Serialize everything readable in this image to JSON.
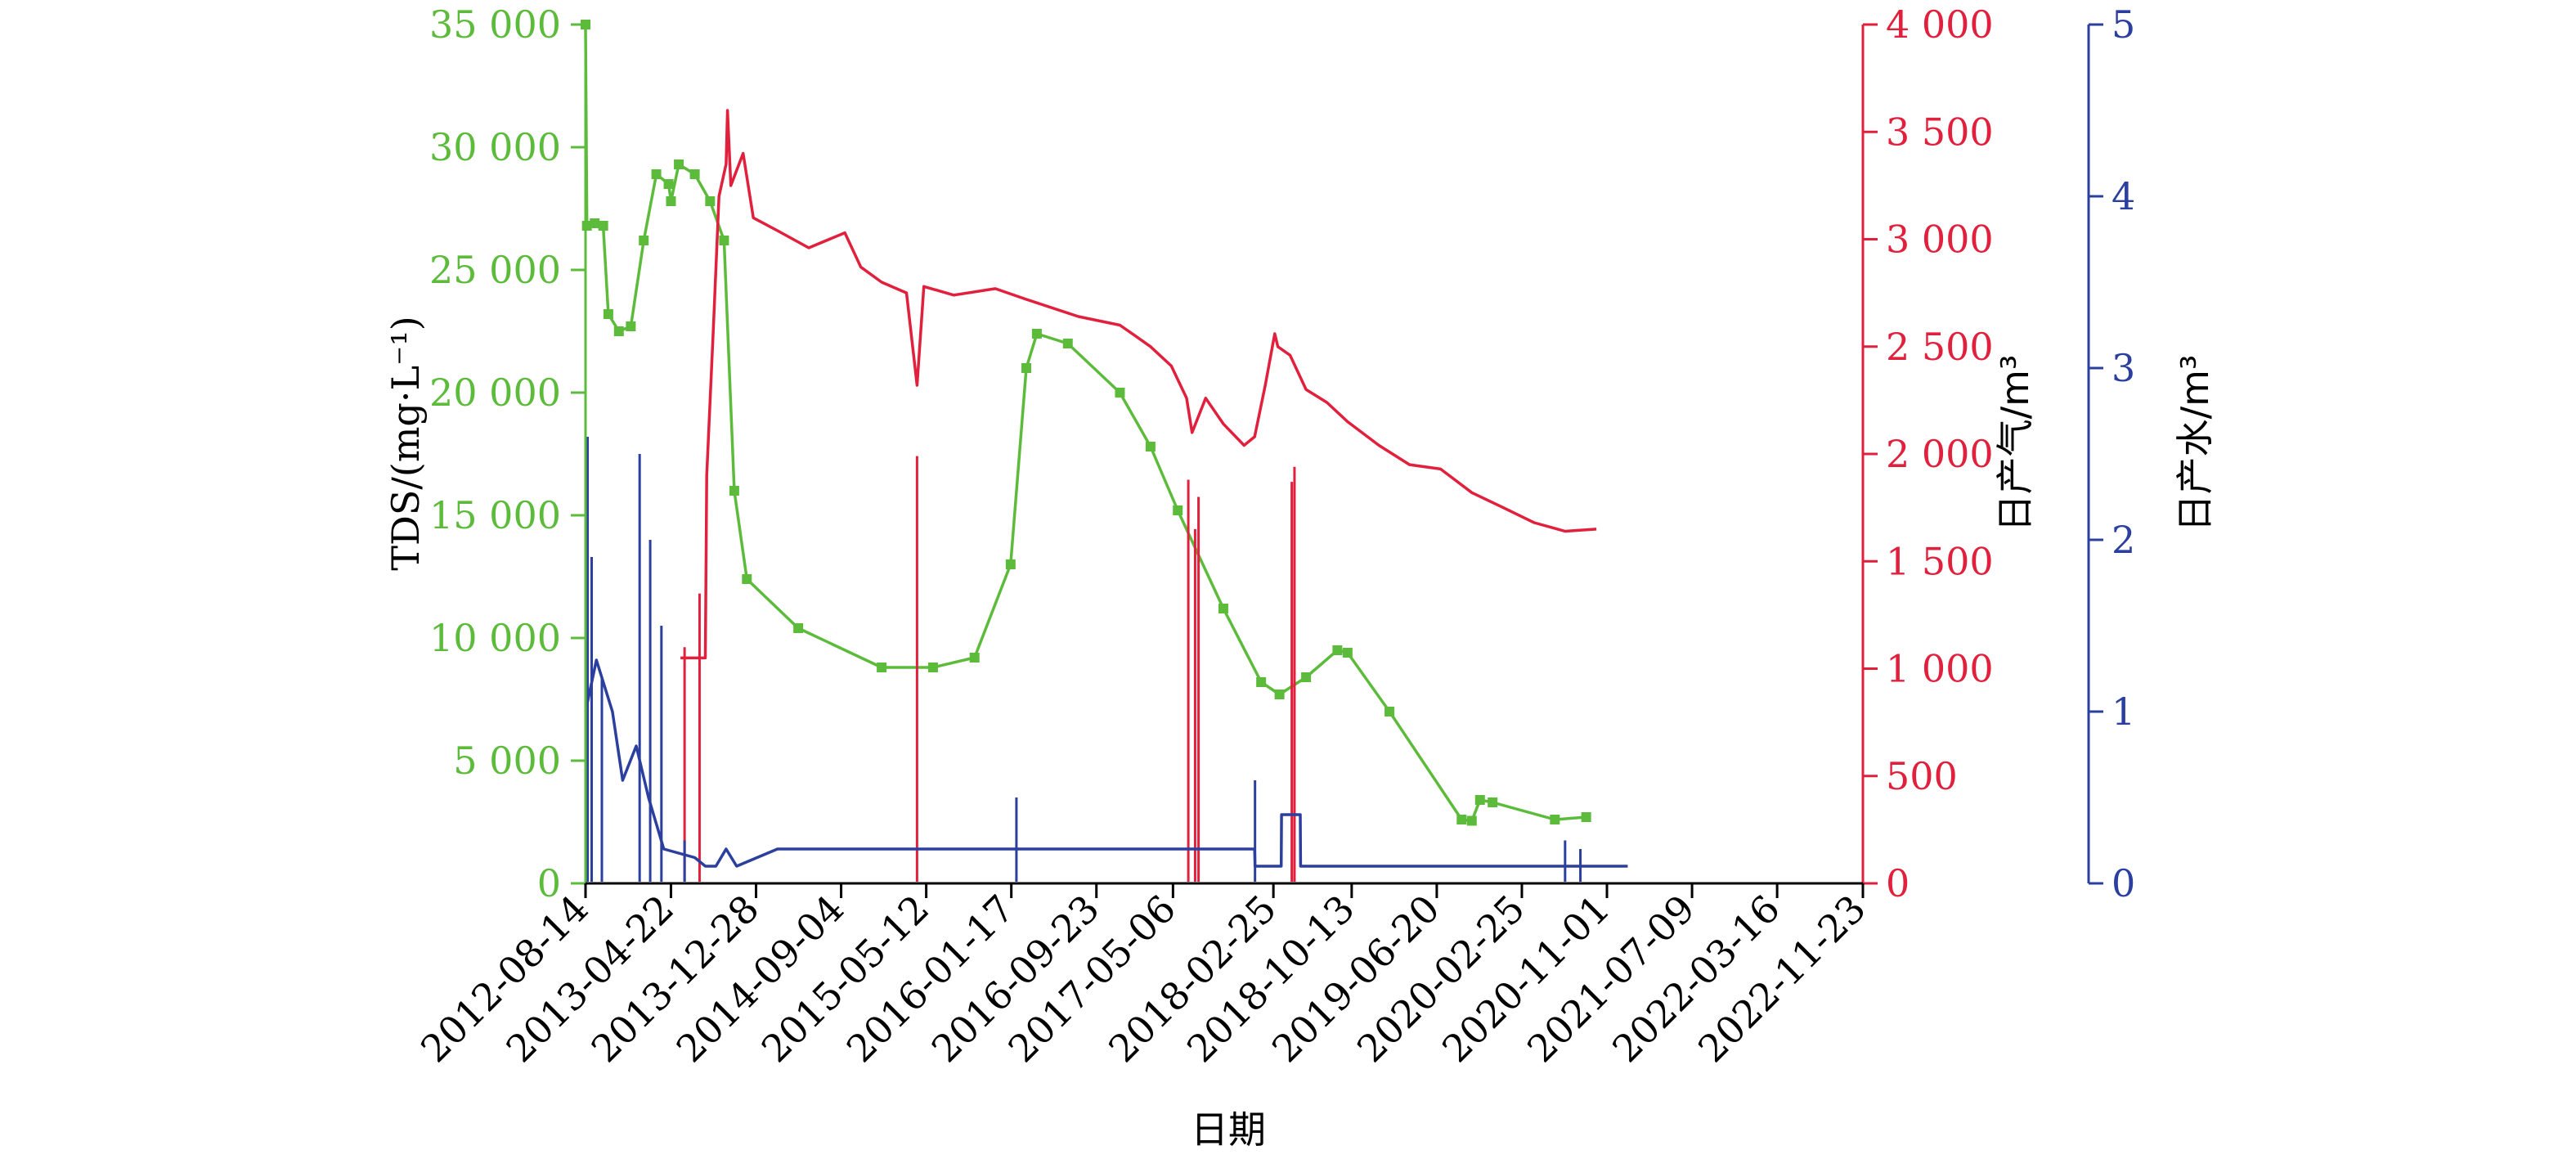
{
  "chart_data": {
    "type": "line",
    "x_ticks": [
      "2012-08-14",
      "2013-04-22",
      "2013-12-28",
      "2014-09-04",
      "2015-05-12",
      "2016-01-17",
      "2016-09-23",
      "2017-05-06",
      "2018-02-25",
      "2018-10-13",
      "2019-06-20",
      "2020-02-25",
      "2020-11-01",
      "2021-07-09",
      "2022-03-16",
      "2022-11-23"
    ],
    "xlabel": "日期",
    "y_left": {
      "label": "TDS/(mg·L⁻¹)",
      "ticks": [
        "0",
        "5 000",
        "10 000",
        "15 000",
        "20 000",
        "25 000",
        "30 000",
        "35 000"
      ],
      "range": [
        0,
        35000
      ],
      "color": "#5DBB3C"
    },
    "y_right1": {
      "label": "日产气/m³",
      "ticks": [
        "0",
        "500",
        "1 000",
        "1 500",
        "2 000",
        "2 500",
        "3 000",
        "3 500",
        "4 000"
      ],
      "range": [
        0,
        4000
      ],
      "color": "#E0203C"
    },
    "y_right2": {
      "label": "日产水/m³",
      "ticks": [
        "0",
        "1",
        "2",
        "3",
        "4",
        "5"
      ],
      "range": [
        0,
        5
      ],
      "color": "#2B3F9E"
    },
    "series": [
      {
        "axis": "left",
        "color": "#5DBB3C",
        "points": [
          [
            "2012-08-14",
            35000
          ],
          [
            "2012-08-18",
            26800
          ],
          [
            "2012-09-10",
            26900
          ],
          [
            "2012-10-05",
            26800
          ],
          [
            "2012-10-20",
            23200
          ],
          [
            "2012-11-20",
            22500
          ],
          [
            "2012-12-25",
            22700
          ],
          [
            "2013-02-01",
            26200
          ],
          [
            "2013-03-10",
            28900
          ],
          [
            "2013-04-15",
            28500
          ],
          [
            "2013-04-22",
            27800
          ],
          [
            "2013-05-15",
            29300
          ],
          [
            "2013-07-01",
            28900
          ],
          [
            "2013-08-15",
            27800
          ],
          [
            "2013-09-25",
            26200
          ],
          [
            "2013-10-25",
            16000
          ],
          [
            "2013-12-01",
            12400
          ],
          [
            "2014-05-01",
            10400
          ],
          [
            "2015-01-01",
            8800
          ],
          [
            "2015-06-01",
            8800
          ],
          [
            "2015-10-01",
            9200
          ],
          [
            "2016-01-15",
            13000
          ],
          [
            "2016-03-01",
            21000
          ],
          [
            "2016-04-01",
            22400
          ],
          [
            "2016-07-01",
            22000
          ],
          [
            "2016-12-01",
            20000
          ],
          [
            "2017-03-01",
            17800
          ],
          [
            "2017-05-20",
            15200
          ],
          [
            "2017-10-01",
            11200
          ],
          [
            "2018-01-20",
            8200
          ],
          [
            "2018-03-15",
            7700
          ],
          [
            "2018-06-01",
            8400
          ],
          [
            "2018-09-01",
            9500
          ],
          [
            "2018-10-01",
            9400
          ],
          [
            "2019-02-01",
            7000
          ],
          [
            "2019-09-01",
            2600
          ],
          [
            "2019-10-01",
            2550
          ],
          [
            "2019-10-25",
            3400
          ],
          [
            "2019-12-01",
            3300
          ],
          [
            "2020-06-01",
            2600
          ],
          [
            "2020-09-01",
            2700
          ]
        ]
      },
      {
        "axis": "right1",
        "color": "#E0203C",
        "points": [
          [
            "2013-05-20",
            1050
          ],
          [
            "2013-08-01",
            1050
          ],
          [
            "2013-08-05",
            1900
          ],
          [
            "2013-08-25",
            2600
          ],
          [
            "2013-09-10",
            3200
          ],
          [
            "2013-10-01",
            3350
          ],
          [
            "2013-10-05",
            3600
          ],
          [
            "2013-10-15",
            3250
          ],
          [
            "2013-11-20",
            3400
          ],
          [
            "2013-12-20",
            3100
          ],
          [
            "2014-03-01",
            3040
          ],
          [
            "2014-06-01",
            2960
          ],
          [
            "2014-09-15",
            3030
          ],
          [
            "2014-11-01",
            2870
          ],
          [
            "2015-01-01",
            2800
          ],
          [
            "2015-03-15",
            2750
          ],
          [
            "2015-04-15",
            2320
          ],
          [
            "2015-05-05",
            2780
          ],
          [
            "2015-08-01",
            2740
          ],
          [
            "2015-12-01",
            2770
          ],
          [
            "2016-03-01",
            2720
          ],
          [
            "2016-08-01",
            2640
          ],
          [
            "2016-12-01",
            2600
          ],
          [
            "2017-01-15",
            2550
          ],
          [
            "2017-03-01",
            2500
          ],
          [
            "2017-05-01",
            2410
          ],
          [
            "2017-06-15",
            2260
          ],
          [
            "2017-07-01",
            2100
          ],
          [
            "2017-08-10",
            2260
          ],
          [
            "2017-10-01",
            2140
          ],
          [
            "2017-12-01",
            2040
          ],
          [
            "2018-01-01",
            2080
          ],
          [
            "2018-02-01",
            2320
          ],
          [
            "2018-03-01",
            2560
          ],
          [
            "2018-03-10",
            2500
          ],
          [
            "2018-04-15",
            2460
          ],
          [
            "2018-06-01",
            2300
          ],
          [
            "2018-08-01",
            2240
          ],
          [
            "2018-10-01",
            2150
          ],
          [
            "2019-01-01",
            2040
          ],
          [
            "2019-04-01",
            1950
          ],
          [
            "2019-07-01",
            1930
          ],
          [
            "2019-10-01",
            1820
          ],
          [
            "2020-01-01",
            1750
          ],
          [
            "2020-04-01",
            1680
          ],
          [
            "2020-07-01",
            1640
          ],
          [
            "2020-10-01",
            1650
          ]
        ],
        "spikes": [
          [
            "2013-06-01",
            1100
          ],
          [
            "2013-07-15",
            1350
          ],
          [
            "2015-04-15",
            1990
          ],
          [
            "2017-06-20",
            1880
          ],
          [
            "2017-07-10",
            1650
          ],
          [
            "2017-07-20",
            1800
          ],
          [
            "2018-04-20",
            1870
          ],
          [
            "2018-04-28",
            1940
          ]
        ]
      },
      {
        "axis": "right2",
        "color": "#2B3F9E",
        "points": [
          [
            "2012-08-14",
            1.0
          ],
          [
            "2012-09-15",
            1.3
          ],
          [
            "2012-11-01",
            1.0
          ],
          [
            "2012-12-01",
            0.6
          ],
          [
            "2013-01-10",
            0.8
          ],
          [
            "2013-02-15",
            0.5
          ],
          [
            "2013-04-01",
            0.2
          ],
          [
            "2013-07-01",
            0.15
          ],
          [
            "2013-08-01",
            0.1
          ],
          [
            "2013-09-01",
            0.1
          ],
          [
            "2013-10-01",
            0.2
          ],
          [
            "2013-11-01",
            0.1
          ],
          [
            "2014-03-01",
            0.2
          ],
          [
            "2016-06-01",
            0.2
          ],
          [
            "2017-06-01",
            0.2
          ],
          [
            "2018-01-01",
            0.2
          ],
          [
            "2018-01-02",
            0.1
          ],
          [
            "2018-03-20",
            0.1
          ],
          [
            "2018-03-21",
            0.4
          ],
          [
            "2018-05-15",
            0.4
          ],
          [
            "2018-05-16",
            0.1
          ],
          [
            "2020-06-01",
            0.1
          ],
          [
            "2021-01-01",
            0.1
          ]
        ],
        "spikes": [
          [
            "2012-08-20",
            2.6
          ],
          [
            "2012-09-01",
            1.9
          ],
          [
            "2012-10-01",
            1.2
          ],
          [
            "2013-01-20",
            2.5
          ],
          [
            "2013-02-20",
            2.0
          ],
          [
            "2013-03-25",
            1.5
          ],
          [
            "2013-06-01",
            0.25
          ],
          [
            "2016-02-01",
            0.5
          ],
          [
            "2018-01-02",
            0.6
          ],
          [
            "2020-07-01",
            0.25
          ],
          [
            "2020-08-15",
            0.2
          ]
        ]
      }
    ]
  }
}
